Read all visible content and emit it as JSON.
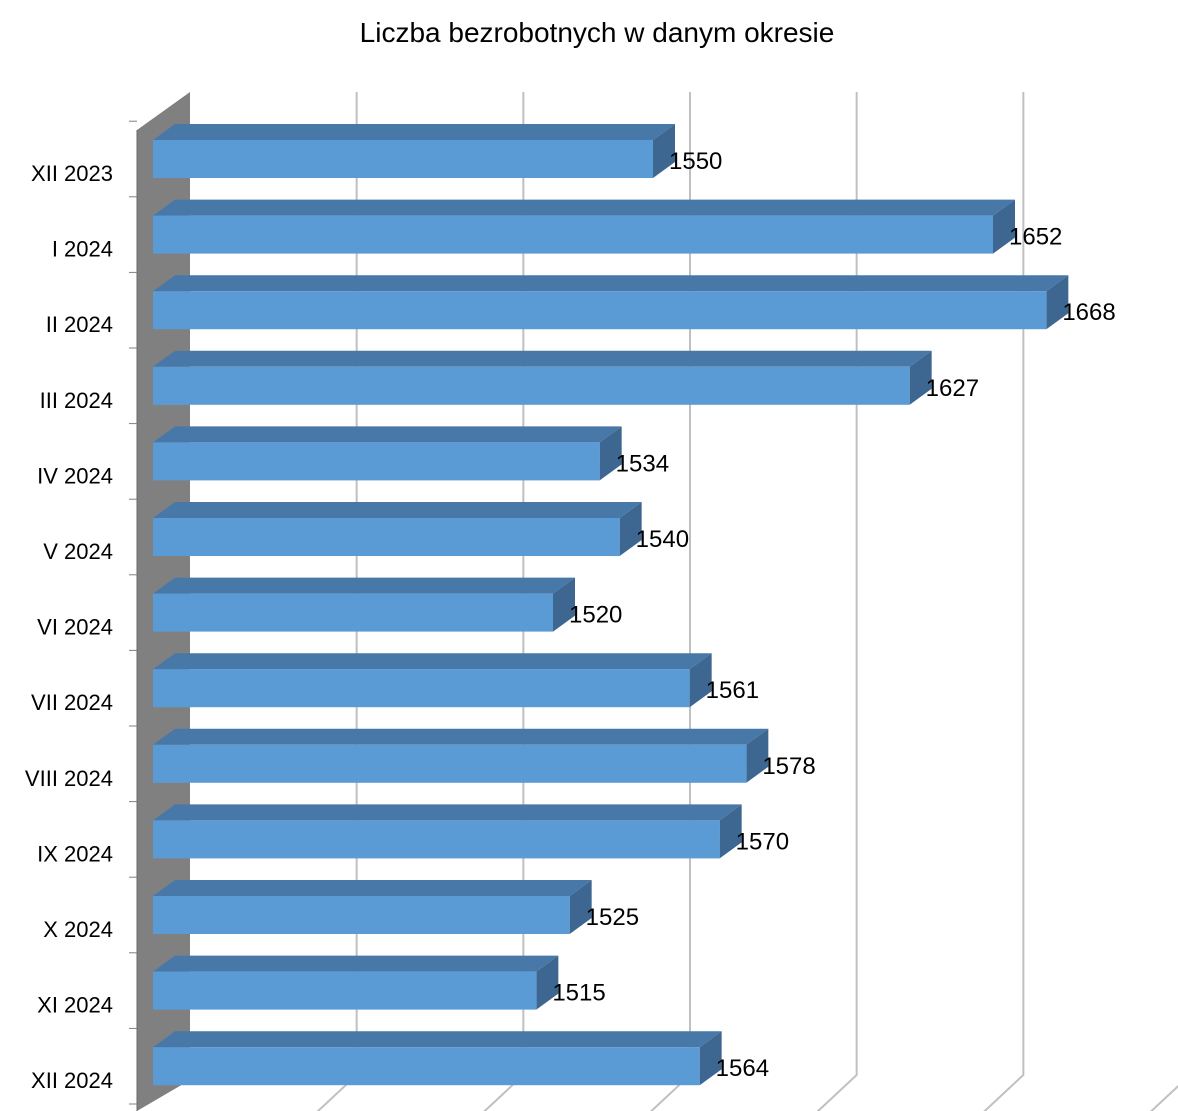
{
  "chart_data": {
    "type": "bar3d_horizontal",
    "title": "Liczba bezrobotnych w danym okresie",
    "categories": [
      "XII 2023",
      "I 2024",
      "II 2024",
      "III 2024",
      "IV 2024",
      "V 2024",
      "VI 2024",
      "VII 2024",
      "VIII 2024",
      "IX 2024",
      "X 2024",
      "XI 2024",
      "XII 2024"
    ],
    "values": [
      1550,
      1652,
      1668,
      1627,
      1534,
      1540,
      1520,
      1561,
      1578,
      1570,
      1525,
      1515,
      1564
    ],
    "color": "#5b9bd5",
    "xlim": [
      1400,
      1700
    ],
    "xticks": [
      1400,
      1450,
      1500,
      1550,
      1600,
      1650,
      1700
    ],
    "grid": true
  }
}
